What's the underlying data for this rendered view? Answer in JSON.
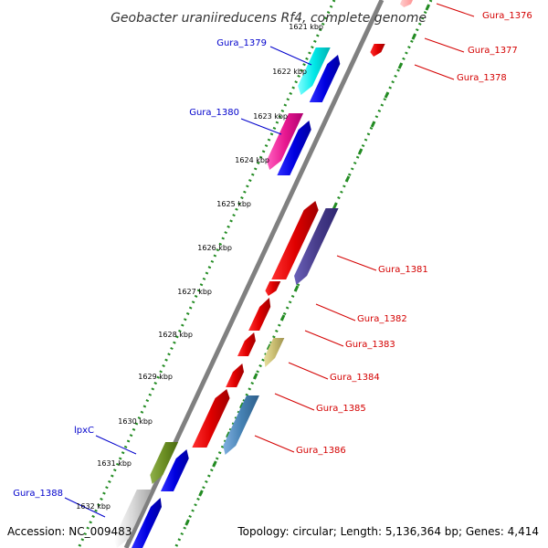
{
  "title": "Geobacter uraniireducens Rf4, complete genome",
  "accession": "Accession: NC_009483",
  "summary": "Topology: circular; Length: 5,136,364 bp; Genes: 4,414",
  "colors": {
    "backbone": "#808080",
    "scale_dots": "#228b22",
    "label_red": "#d40000",
    "label_blue": "#0000cc"
  },
  "ticks": [
    {
      "label": "1621 kbp"
    },
    {
      "label": "1622 kbp"
    },
    {
      "label": "1623 kbp"
    },
    {
      "label": "1624 kbp"
    },
    {
      "label": "1625 kbp"
    },
    {
      "label": "1626 kbp"
    },
    {
      "label": "1627 kbp"
    },
    {
      "label": "1628 kbp"
    },
    {
      "label": "1629 kbp"
    },
    {
      "label": "1630 kbp"
    },
    {
      "label": "1631 kbp"
    },
    {
      "label": "1632 kbp"
    }
  ],
  "genes": [
    {
      "name": "Gura_1376",
      "label_color": "#d40000"
    },
    {
      "name": "Gura_1377",
      "label_color": "#d40000"
    },
    {
      "name": "Gura_1378",
      "label_color": "#d40000"
    },
    {
      "name": "Gura_1379",
      "label_color": "#0000cc"
    },
    {
      "name": "Gura_1380",
      "label_color": "#0000cc"
    },
    {
      "name": "Gura_1381",
      "label_color": "#d40000"
    },
    {
      "name": "Gura_1382",
      "label_color": "#d40000"
    },
    {
      "name": "Gura_1383",
      "label_color": "#d40000"
    },
    {
      "name": "Gura_1384",
      "label_color": "#d40000"
    },
    {
      "name": "Gura_1385",
      "label_color": "#d40000"
    },
    {
      "name": "Gura_1386",
      "label_color": "#d40000"
    },
    {
      "name": "lpxC",
      "label_color": "#0000cc"
    },
    {
      "name": "Gura_1388",
      "label_color": "#0000cc"
    }
  ]
}
